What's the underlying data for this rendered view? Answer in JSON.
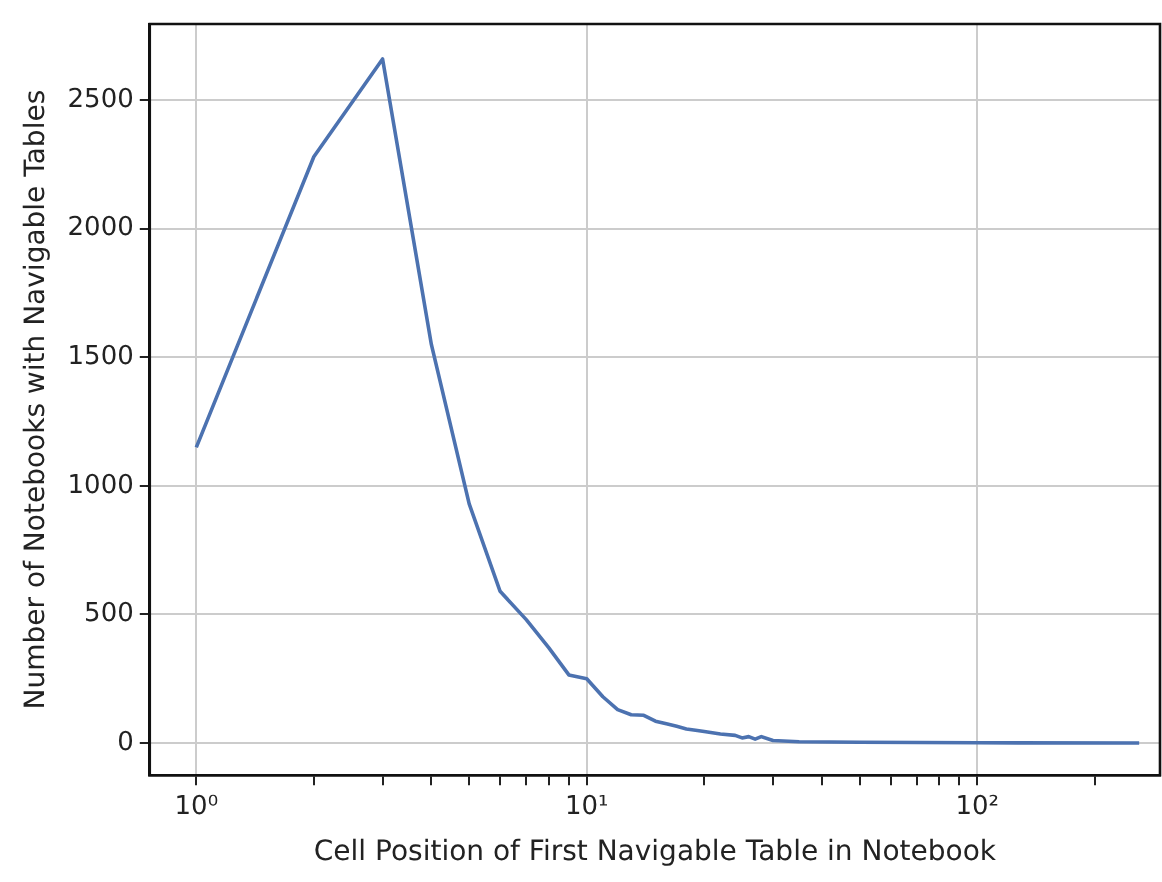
{
  "chart_data": {
    "type": "line",
    "xlabel": "Cell Position of First Navigable Table in Notebook",
    "ylabel": "Number of Notebooks with Navigable Tables",
    "log": "x",
    "grid": true,
    "legend": false,
    "marker": "none",
    "line_style": "solid",
    "x": [
      1,
      2,
      3,
      4,
      5,
      6,
      7,
      8,
      9,
      10,
      11,
      12,
      13,
      14,
      15,
      16,
      17,
      18,
      19,
      20,
      22,
      24,
      25,
      26,
      27,
      28,
      30,
      35,
      50,
      100,
      260
    ],
    "series": [
      {
        "color": "#4c72b0",
        "values": [
          1150,
          2280,
          2660,
          1550,
          930,
          590,
          480,
          370,
          265,
          250,
          180,
          130,
          110,
          108,
          85,
          75,
          65,
          55,
          50,
          45,
          35,
          30,
          20,
          25,
          15,
          25,
          10,
          5,
          3,
          1,
          0
        ]
      }
    ],
    "xlim": [
      0.76,
      294
    ],
    "xticks": [
      {
        "value": 1,
        "label": "10⁰"
      },
      {
        "value": 2,
        "label": null
      },
      {
        "value": 3,
        "label": null
      },
      {
        "value": 4,
        "label": null
      },
      {
        "value": 5,
        "label": null
      },
      {
        "value": 6,
        "label": null
      },
      {
        "value": 7,
        "label": null
      },
      {
        "value": 8,
        "label": null
      },
      {
        "value": 9,
        "label": null
      },
      {
        "value": 10,
        "label": "10¹"
      },
      {
        "value": 20,
        "label": null
      },
      {
        "value": 30,
        "label": null
      },
      {
        "value": 40,
        "label": null
      },
      {
        "value": 50,
        "label": null
      },
      {
        "value": 60,
        "label": null
      },
      {
        "value": 70,
        "label": null
      },
      {
        "value": 80,
        "label": null
      },
      {
        "value": 90,
        "label": null
      },
      {
        "value": 100,
        "label": "10²"
      },
      {
        "value": 200,
        "label": null
      }
    ],
    "ylim": [
      -125,
      2796
    ],
    "yticks": [
      0,
      500,
      1000,
      1500,
      2000,
      2500
    ]
  }
}
